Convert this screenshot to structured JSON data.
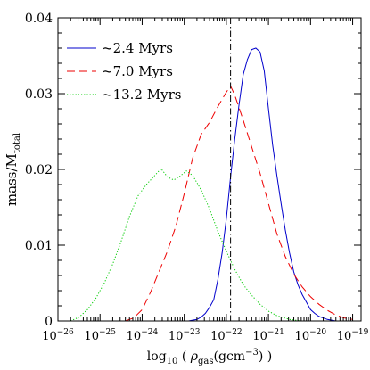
{
  "chart_data": {
    "type": "line",
    "xlabel": {
      "prefix": "log",
      "sub": "10",
      "mid": " ( ",
      "rho": "ρ",
      "rho_sub": "gas",
      "unit_open": "(gcm",
      "unit_exp": "−3",
      "unit_close": ") )"
    },
    "ylabel": {
      "main": "mass/M",
      "sub": "total"
    },
    "xlim": [
      -26,
      -18.8
    ],
    "ylim": [
      0,
      0.04
    ],
    "x_scale": "log10 of density",
    "x_ticks": [
      {
        "value": -26,
        "base": "10",
        "exp": "−26"
      },
      {
        "value": -25,
        "base": "10",
        "exp": "−25"
      },
      {
        "value": -24,
        "base": "10",
        "exp": "−24"
      },
      {
        "value": -23,
        "base": "10",
        "exp": "−23"
      },
      {
        "value": -22,
        "base": "10",
        "exp": "−22"
      },
      {
        "value": -21,
        "base": "10",
        "exp": "−21"
      },
      {
        "value": -20,
        "base": "10",
        "exp": "−20"
      },
      {
        "value": -19,
        "base": "10",
        "exp": "−19"
      }
    ],
    "y_ticks": [
      {
        "value": 0,
        "label": "0"
      },
      {
        "value": 0.01,
        "label": "0.01"
      },
      {
        "value": 0.02,
        "label": "0.02"
      },
      {
        "value": 0.03,
        "label": "0.03"
      },
      {
        "value": 0.04,
        "label": "0.04"
      }
    ],
    "vline": {
      "x": -21.9,
      "style": "dash-dot",
      "color": "#000000"
    },
    "legend": {
      "placement": "top-left"
    },
    "series": [
      {
        "name": "~2.4 Myrs",
        "color": "#0000cc",
        "dash": "solid",
        "points": [
          [
            -22.9,
            0
          ],
          [
            -22.7,
            0.0002
          ],
          [
            -22.6,
            0.0005
          ],
          [
            -22.5,
            0.001
          ],
          [
            -22.4,
            0.0018
          ],
          [
            -22.3,
            0.0028
          ],
          [
            -22.2,
            0.0055
          ],
          [
            -22.1,
            0.009
          ],
          [
            -22.0,
            0.0135
          ],
          [
            -21.9,
            0.019
          ],
          [
            -21.8,
            0.024
          ],
          [
            -21.7,
            0.0285
          ],
          [
            -21.6,
            0.0325
          ],
          [
            -21.5,
            0.0345
          ],
          [
            -21.4,
            0.0358
          ],
          [
            -21.3,
            0.036
          ],
          [
            -21.2,
            0.0355
          ],
          [
            -21.1,
            0.033
          ],
          [
            -21.0,
            0.028
          ],
          [
            -20.9,
            0.0232
          ],
          [
            -20.8,
            0.0192
          ],
          [
            -20.7,
            0.0155
          ],
          [
            -20.6,
            0.012
          ],
          [
            -20.5,
            0.009
          ],
          [
            -20.4,
            0.0065
          ],
          [
            -20.3,
            0.0048
          ],
          [
            -20.2,
            0.0035
          ],
          [
            -20.1,
            0.0025
          ],
          [
            -20.0,
            0.0015
          ],
          [
            -19.9,
            0.001
          ],
          [
            -19.8,
            0.0006
          ],
          [
            -19.6,
            0.0002
          ],
          [
            -19.4,
            0
          ]
        ]
      },
      {
        "name": "~7.0 Myrs",
        "color": "#ee0000",
        "dash": "long-dash",
        "points": [
          [
            -24.4,
            0
          ],
          [
            -24.2,
            0.0004
          ],
          [
            -24.0,
            0.0015
          ],
          [
            -23.8,
            0.0038
          ],
          [
            -23.6,
            0.0065
          ],
          [
            -23.4,
            0.0092
          ],
          [
            -23.2,
            0.0125
          ],
          [
            -23.0,
            0.0168
          ],
          [
            -22.8,
            0.0215
          ],
          [
            -22.6,
            0.0246
          ],
          [
            -22.4,
            0.0262
          ],
          [
            -22.2,
            0.0283
          ],
          [
            -22.0,
            0.0302
          ],
          [
            -21.9,
            0.031
          ],
          [
            -21.8,
            0.0298
          ],
          [
            -21.6,
            0.0265
          ],
          [
            -21.4,
            0.023
          ],
          [
            -21.2,
            0.0195
          ],
          [
            -21.0,
            0.0155
          ],
          [
            -20.8,
            0.0115
          ],
          [
            -20.6,
            0.0085
          ],
          [
            -20.4,
            0.0062
          ],
          [
            -20.2,
            0.0045
          ],
          [
            -20.0,
            0.0032
          ],
          [
            -19.8,
            0.0022
          ],
          [
            -19.6,
            0.0014
          ],
          [
            -19.4,
            0.0008
          ],
          [
            -19.2,
            0.0004
          ],
          [
            -19.0,
            0.0002
          ]
        ]
      },
      {
        "name": "~13.2 Myrs",
        "color": "#00cc00",
        "dash": "dotted",
        "points": [
          [
            -25.7,
            0
          ],
          [
            -25.5,
            0.0005
          ],
          [
            -25.3,
            0.0015
          ],
          [
            -25.1,
            0.003
          ],
          [
            -24.9,
            0.005
          ],
          [
            -24.7,
            0.0075
          ],
          [
            -24.5,
            0.0105
          ],
          [
            -24.3,
            0.0138
          ],
          [
            -24.1,
            0.0165
          ],
          [
            -23.9,
            0.018
          ],
          [
            -23.7,
            0.0192
          ],
          [
            -23.55,
            0.0201
          ],
          [
            -23.4,
            0.019
          ],
          [
            -23.25,
            0.0186
          ],
          [
            -23.1,
            0.0191
          ],
          [
            -22.95,
            0.0198
          ],
          [
            -22.8,
            0.0192
          ],
          [
            -22.6,
            0.0173
          ],
          [
            -22.4,
            0.0148
          ],
          [
            -22.2,
            0.0118
          ],
          [
            -22.0,
            0.0092
          ],
          [
            -21.8,
            0.0068
          ],
          [
            -21.6,
            0.0048
          ],
          [
            -21.4,
            0.0034
          ],
          [
            -21.2,
            0.0022
          ],
          [
            -21.0,
            0.0013
          ],
          [
            -20.8,
            0.0007
          ],
          [
            -20.5,
            0.0002
          ],
          [
            -20.2,
            0
          ]
        ]
      }
    ]
  }
}
